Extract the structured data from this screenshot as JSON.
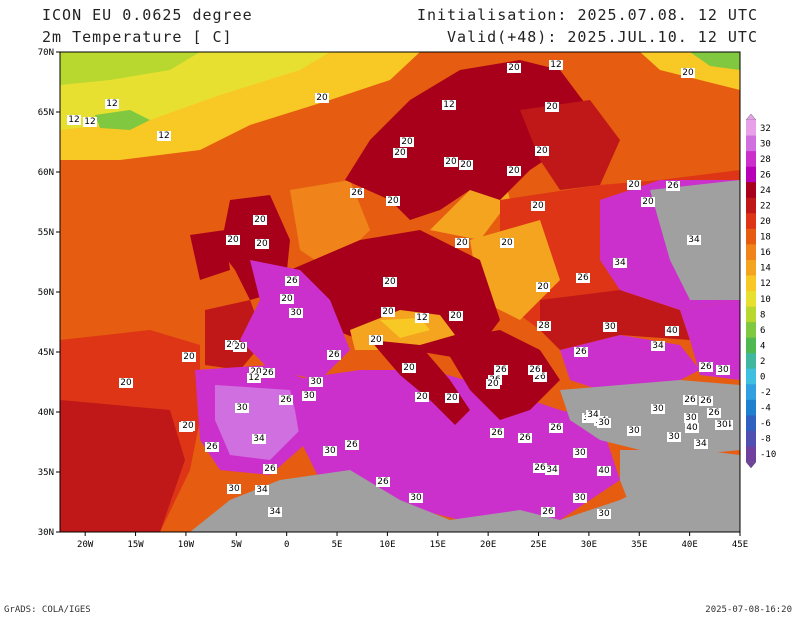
{
  "header": {
    "model": "ICON EU 0.0625 degree",
    "variable": "2m Temperature [ C]",
    "init": "Initialisation: 2025.07.08. 12 UTC",
    "valid": "Valid(+48): 2025.JUL.10. 12 UTC"
  },
  "footer": {
    "grads": "GrADS: COLA/IGES",
    "date": "2025-07-08-16:20"
  },
  "lat_labels": [
    "70N",
    "65N",
    "60N",
    "55N",
    "50N",
    "45N",
    "40N",
    "35N",
    "30N"
  ],
  "lon_labels": [
    "20W",
    "15W",
    "10W",
    "5W",
    "0",
    "5E",
    "10E",
    "15E",
    "20E",
    "25E",
    "30E",
    "35E",
    "40E",
    "45E"
  ],
  "colorbar": {
    "levels": [
      "32",
      "30",
      "28",
      "26",
      "24",
      "22",
      "20",
      "18",
      "16",
      "14",
      "12",
      "10",
      "8",
      "6",
      "4",
      "2",
      "0",
      "-2",
      "-4",
      "-6",
      "-8",
      "-10"
    ],
    "colors": [
      "#e8a0e8",
      "#d070e0",
      "#cc30cc",
      "#b800b8",
      "#a8001a",
      "#c01818",
      "#dd3515",
      "#e65c10",
      "#f0841a",
      "#f4a41e",
      "#f8c825",
      "#e8e030",
      "#b8d830",
      "#80c840",
      "#50b850",
      "#40b8a0",
      "#40c0e0",
      "#30a0e0",
      "#2080d0",
      "#3060c0",
      "#5050b0",
      "#7040a0"
    ]
  },
  "map": {
    "colors": {
      "sea": "#e65c10",
      "atlantic_warm": "#dd3515",
      "atlantic_hot": "#c01818",
      "north_sea": "#f0841a",
      "arctic": "#f8c825",
      "arctic_cold": "#e8e030",
      "land_dark": "#a8001a",
      "land_hot": "#cc30cc",
      "land_veryhot": "#d070e0",
      "outside": "#a0a0a0"
    },
    "contour_labels": [
      "20",
      "12",
      "20",
      "12",
      "12",
      "12",
      "12",
      "20",
      "12",
      "20",
      "20",
      "20",
      "20",
      "20",
      "20",
      "20",
      "20",
      "26",
      "20",
      "20",
      "20",
      "20",
      "20",
      "20",
      "20",
      "20",
      "20",
      "20",
      "20",
      "26",
      "30",
      "34",
      "34",
      "26",
      "20",
      "12",
      "20",
      "26",
      "20",
      "20",
      "20",
      "26",
      "26",
      "28",
      "20",
      "20",
      "20",
      "12",
      "12",
      "30",
      "34",
      "30",
      "26",
      "30",
      "26",
      "20",
      "26",
      "26",
      "20",
      "20",
      "26",
      "30",
      "26",
      "30",
      "26",
      "30",
      "26",
      "20",
      "26",
      "26",
      "30",
      "30",
      "26",
      "34",
      "34",
      "34",
      "40",
      "30",
      "26",
      "30",
      "20",
      "26",
      "26",
      "30",
      "26",
      "30",
      "34",
      "26",
      "30",
      "34",
      "40",
      "26",
      "30",
      "34",
      "30",
      "34",
      "40",
      "30",
      "26",
      "30",
      "34",
      "30",
      "26"
    ]
  }
}
